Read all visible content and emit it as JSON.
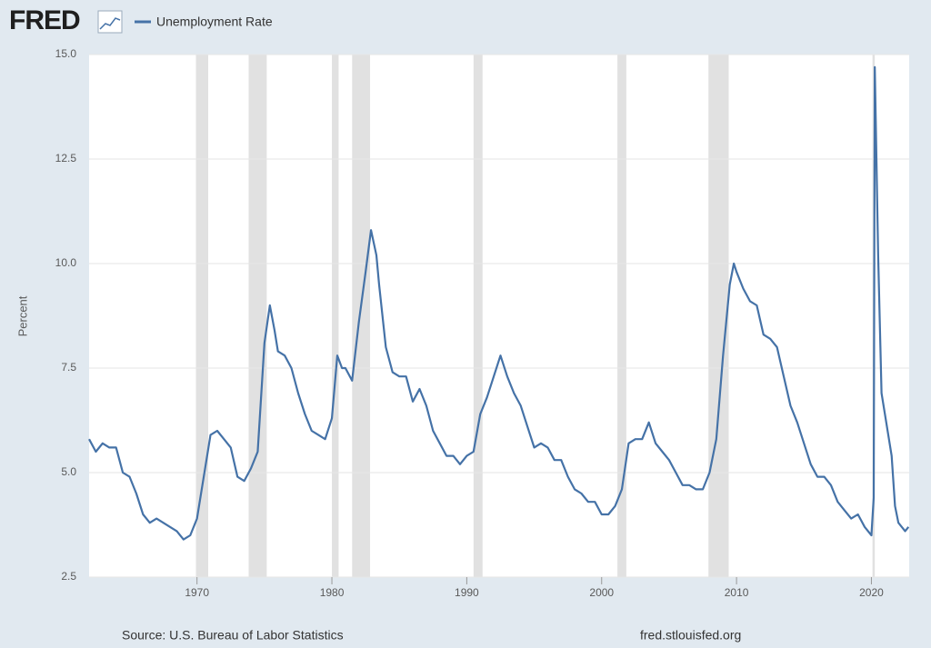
{
  "logo": "FRED",
  "chart_data": {
    "type": "line",
    "y_label": "Percent",
    "source": "Source: U.S. Bureau of Labor Statistics",
    "site": "fred.stlouisfed.org",
    "xlim": [
      1962,
      2022.8
    ],
    "xticks": [
      1970,
      1980,
      1990,
      2000,
      2010,
      2020
    ],
    "ylim": [
      2.5,
      15
    ],
    "yticks": [
      2.5,
      {
        "value": 5,
        "label": "5.0"
      },
      7.5,
      {
        "value": 10,
        "label": "10.0"
      },
      12.5,
      {
        "value": 15,
        "label": "15.0"
      }
    ],
    "grid": true,
    "recessions": [
      [
        1969.92,
        1970.83
      ],
      [
        1973.83,
        1975.17
      ],
      [
        1980.0,
        1980.5
      ],
      [
        1981.5,
        1982.83
      ],
      [
        1990.5,
        1991.17
      ],
      [
        2001.17,
        2001.83
      ],
      [
        2007.92,
        2009.42
      ],
      [
        2020.08,
        2020.25
      ]
    ],
    "x": [
      1962.0,
      1962.5,
      1963.0,
      1963.5,
      1964.0,
      1964.5,
      1965.0,
      1965.5,
      1966.0,
      1966.5,
      1967.0,
      1967.5,
      1968.0,
      1968.5,
      1969.0,
      1969.5,
      1970.0,
      1970.5,
      1971.0,
      1971.5,
      1972.0,
      1972.5,
      1973.0,
      1973.5,
      1974.0,
      1974.5,
      1975.0,
      1975.4,
      1975.75,
      1976.0,
      1976.5,
      1977.0,
      1977.5,
      1978.0,
      1978.5,
      1979.0,
      1979.5,
      1980.0,
      1980.4,
      1980.75,
      1981.0,
      1981.5,
      1982.0,
      1982.5,
      1982.9,
      1983.3,
      1983.5,
      1984.0,
      1984.5,
      1985.0,
      1985.5,
      1986.0,
      1986.5,
      1987.0,
      1987.5,
      1988.0,
      1988.5,
      1989.0,
      1989.5,
      1990.0,
      1990.5,
      1991.0,
      1991.5,
      1992.0,
      1992.5,
      1993.0,
      1993.5,
      1994.0,
      1994.5,
      1995.0,
      1995.5,
      1996.0,
      1996.5,
      1997.0,
      1997.5,
      1998.0,
      1998.5,
      1999.0,
      1999.5,
      2000.0,
      2000.5,
      2001.0,
      2001.5,
      2002.0,
      2002.5,
      2003.0,
      2003.5,
      2004.0,
      2004.5,
      2005.0,
      2005.5,
      2006.0,
      2006.5,
      2007.0,
      2007.5,
      2008.0,
      2008.5,
      2009.0,
      2009.5,
      2009.8,
      2010.0,
      2010.5,
      2011.0,
      2011.5,
      2012.0,
      2012.5,
      2013.0,
      2013.5,
      2014.0,
      2014.5,
      2015.0,
      2015.5,
      2016.0,
      2016.5,
      2017.0,
      2017.5,
      2018.0,
      2018.5,
      2019.0,
      2019.5,
      2020.0,
      2020.17,
      2020.25,
      2020.5,
      2020.75,
      2021.0,
      2021.5,
      2021.75,
      2022.0,
      2022.5,
      2022.75
    ],
    "series": [
      {
        "name": "Unemployment Rate",
        "color": "#4572a7",
        "values": [
          5.8,
          5.5,
          5.7,
          5.6,
          5.6,
          5.0,
          4.9,
          4.5,
          4.0,
          3.8,
          3.9,
          3.8,
          3.7,
          3.6,
          3.4,
          3.5,
          3.9,
          4.9,
          5.9,
          6.0,
          5.8,
          5.6,
          4.9,
          4.8,
          5.1,
          5.5,
          8.1,
          9.0,
          8.4,
          7.9,
          7.8,
          7.5,
          6.9,
          6.4,
          6.0,
          5.9,
          5.8,
          6.3,
          7.8,
          7.5,
          7.5,
          7.2,
          8.6,
          9.8,
          10.8,
          10.2,
          9.5,
          8.0,
          7.4,
          7.3,
          7.3,
          6.7,
          7.0,
          6.6,
          6.0,
          5.7,
          5.4,
          5.4,
          5.2,
          5.4,
          5.5,
          6.4,
          6.8,
          7.3,
          7.8,
          7.3,
          6.9,
          6.6,
          6.1,
          5.6,
          5.7,
          5.6,
          5.3,
          5.3,
          4.9,
          4.6,
          4.5,
          4.3,
          4.3,
          4.0,
          4.0,
          4.2,
          4.6,
          5.7,
          5.8,
          5.8,
          6.2,
          5.7,
          5.5,
          5.3,
          5.0,
          4.7,
          4.7,
          4.6,
          4.6,
          5.0,
          5.8,
          7.8,
          9.5,
          10.0,
          9.8,
          9.4,
          9.1,
          9.0,
          8.3,
          8.2,
          8.0,
          7.3,
          6.6,
          6.2,
          5.7,
          5.2,
          4.9,
          4.9,
          4.7,
          4.3,
          4.1,
          3.9,
          4.0,
          3.7,
          3.5,
          4.4,
          14.7,
          10.2,
          6.9,
          6.4,
          5.4,
          4.2,
          3.8,
          3.6,
          3.7
        ]
      }
    ]
  }
}
